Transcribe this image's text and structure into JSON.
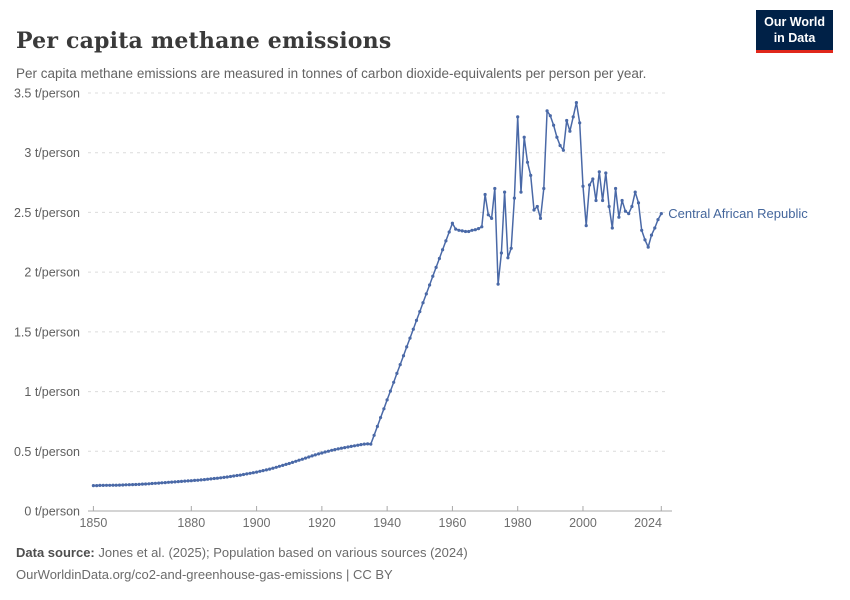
{
  "header": {
    "title": "Per capita methane emissions",
    "subtitle": "Per capita methane emissions are measured in tonnes of carbon dioxide-equivalents per person per year.",
    "logo": {
      "line1": "Our World",
      "line2": "in Data"
    }
  },
  "footer": {
    "source_label": "Data source:",
    "source_text": " Jones et al. (2025); Population based on various sources (2024)",
    "note_text": "OurWorldinData.org/co2-and-greenhouse-gas-emissions | CC BY"
  },
  "colors": {
    "line": "#4a69a7",
    "entity_label": "#44669c",
    "grid": "#dcdcdc",
    "axis": "#a8a8a8",
    "x_tick_label": "#6e6e6e",
    "y_tick_label": "#5f5f5f",
    "logo_bg": "#002147",
    "logo_accent": "#e0271b"
  },
  "chart_data": {
    "type": "line",
    "title": "Per capita methane emissions",
    "entity": "Central African Republic",
    "unit": "t/person",
    "grid": true,
    "legend_position": "end-of-line-label",
    "ylim": [
      0,
      3.5
    ],
    "x": {
      "start": 1850,
      "end": 2024,
      "step": 1
    },
    "x_ticks": [
      {
        "v": 1850,
        "label": "1850"
      },
      {
        "v": 1880,
        "label": "1880"
      },
      {
        "v": 1900,
        "label": "1900"
      },
      {
        "v": 1920,
        "label": "1920"
      },
      {
        "v": 1940,
        "label": "1940"
      },
      {
        "v": 1960,
        "label": "1960"
      },
      {
        "v": 1980,
        "label": "1980"
      },
      {
        "v": 2000,
        "label": "2000"
      },
      {
        "v": 2024,
        "label": "2024"
      }
    ],
    "y_ticks": [
      {
        "v": 0,
        "label": "0 t/person"
      },
      {
        "v": 0.5,
        "label": "0.5 t/person"
      },
      {
        "v": 1,
        "label": "1 t/person"
      },
      {
        "v": 1.5,
        "label": "1.5 t/person"
      },
      {
        "v": 2,
        "label": "2 t/person"
      },
      {
        "v": 2.5,
        "label": "2.5 t/person"
      },
      {
        "v": 3,
        "label": "3 t/person"
      },
      {
        "v": 3.5,
        "label": "3.5 t/person"
      }
    ],
    "values": [
      0.213,
      0.213,
      0.214,
      0.214,
      0.215,
      0.215,
      0.216,
      0.216,
      0.217,
      0.218,
      0.219,
      0.22,
      0.221,
      0.222,
      0.223,
      0.225,
      0.226,
      0.228,
      0.23,
      0.232,
      0.234,
      0.236,
      0.238,
      0.24,
      0.242,
      0.244,
      0.246,
      0.248,
      0.25,
      0.252,
      0.254,
      0.256,
      0.258,
      0.26,
      0.263,
      0.266,
      0.269,
      0.272,
      0.275,
      0.278,
      0.281,
      0.285,
      0.289,
      0.293,
      0.297,
      0.301,
      0.306,
      0.311,
      0.316,
      0.321,
      0.326,
      0.332,
      0.338,
      0.344,
      0.351,
      0.358,
      0.366,
      0.374,
      0.382,
      0.39,
      0.398,
      0.407,
      0.416,
      0.425,
      0.434,
      0.443,
      0.452,
      0.461,
      0.47,
      0.478,
      0.486,
      0.494,
      0.501,
      0.508,
      0.514,
      0.52,
      0.526,
      0.531,
      0.536,
      0.541,
      0.546,
      0.551,
      0.556,
      0.56,
      0.562,
      0.56,
      0.634,
      0.708,
      0.782,
      0.856,
      0.93,
      1.004,
      1.078,
      1.152,
      1.226,
      1.3,
      1.374,
      1.448,
      1.522,
      1.596,
      1.67,
      1.744,
      1.818,
      1.892,
      1.966,
      2.04,
      2.114,
      2.188,
      2.262,
      2.336,
      2.41,
      2.36,
      2.35,
      2.345,
      2.34,
      2.34,
      2.35,
      2.355,
      2.365,
      2.38,
      2.65,
      2.48,
      2.45,
      2.7,
      1.9,
      2.16,
      2.67,
      2.12,
      2.2,
      2.62,
      3.3,
      2.67,
      3.13,
      2.92,
      2.81,
      2.52,
      2.55,
      2.45,
      2.7,
      3.35,
      3.31,
      3.23,
      3.13,
      3.06,
      3.02,
      3.27,
      3.18,
      3.3,
      3.42,
      3.25,
      2.72,
      2.39,
      2.73,
      2.78,
      2.6,
      2.84,
      2.6,
      2.83,
      2.55,
      2.37,
      2.7,
      2.46,
      2.6,
      2.51,
      2.49,
      2.55,
      2.67,
      2.58,
      2.35,
      2.27,
      2.21,
      2.31,
      2.37,
      2.44,
      2.49
    ]
  }
}
